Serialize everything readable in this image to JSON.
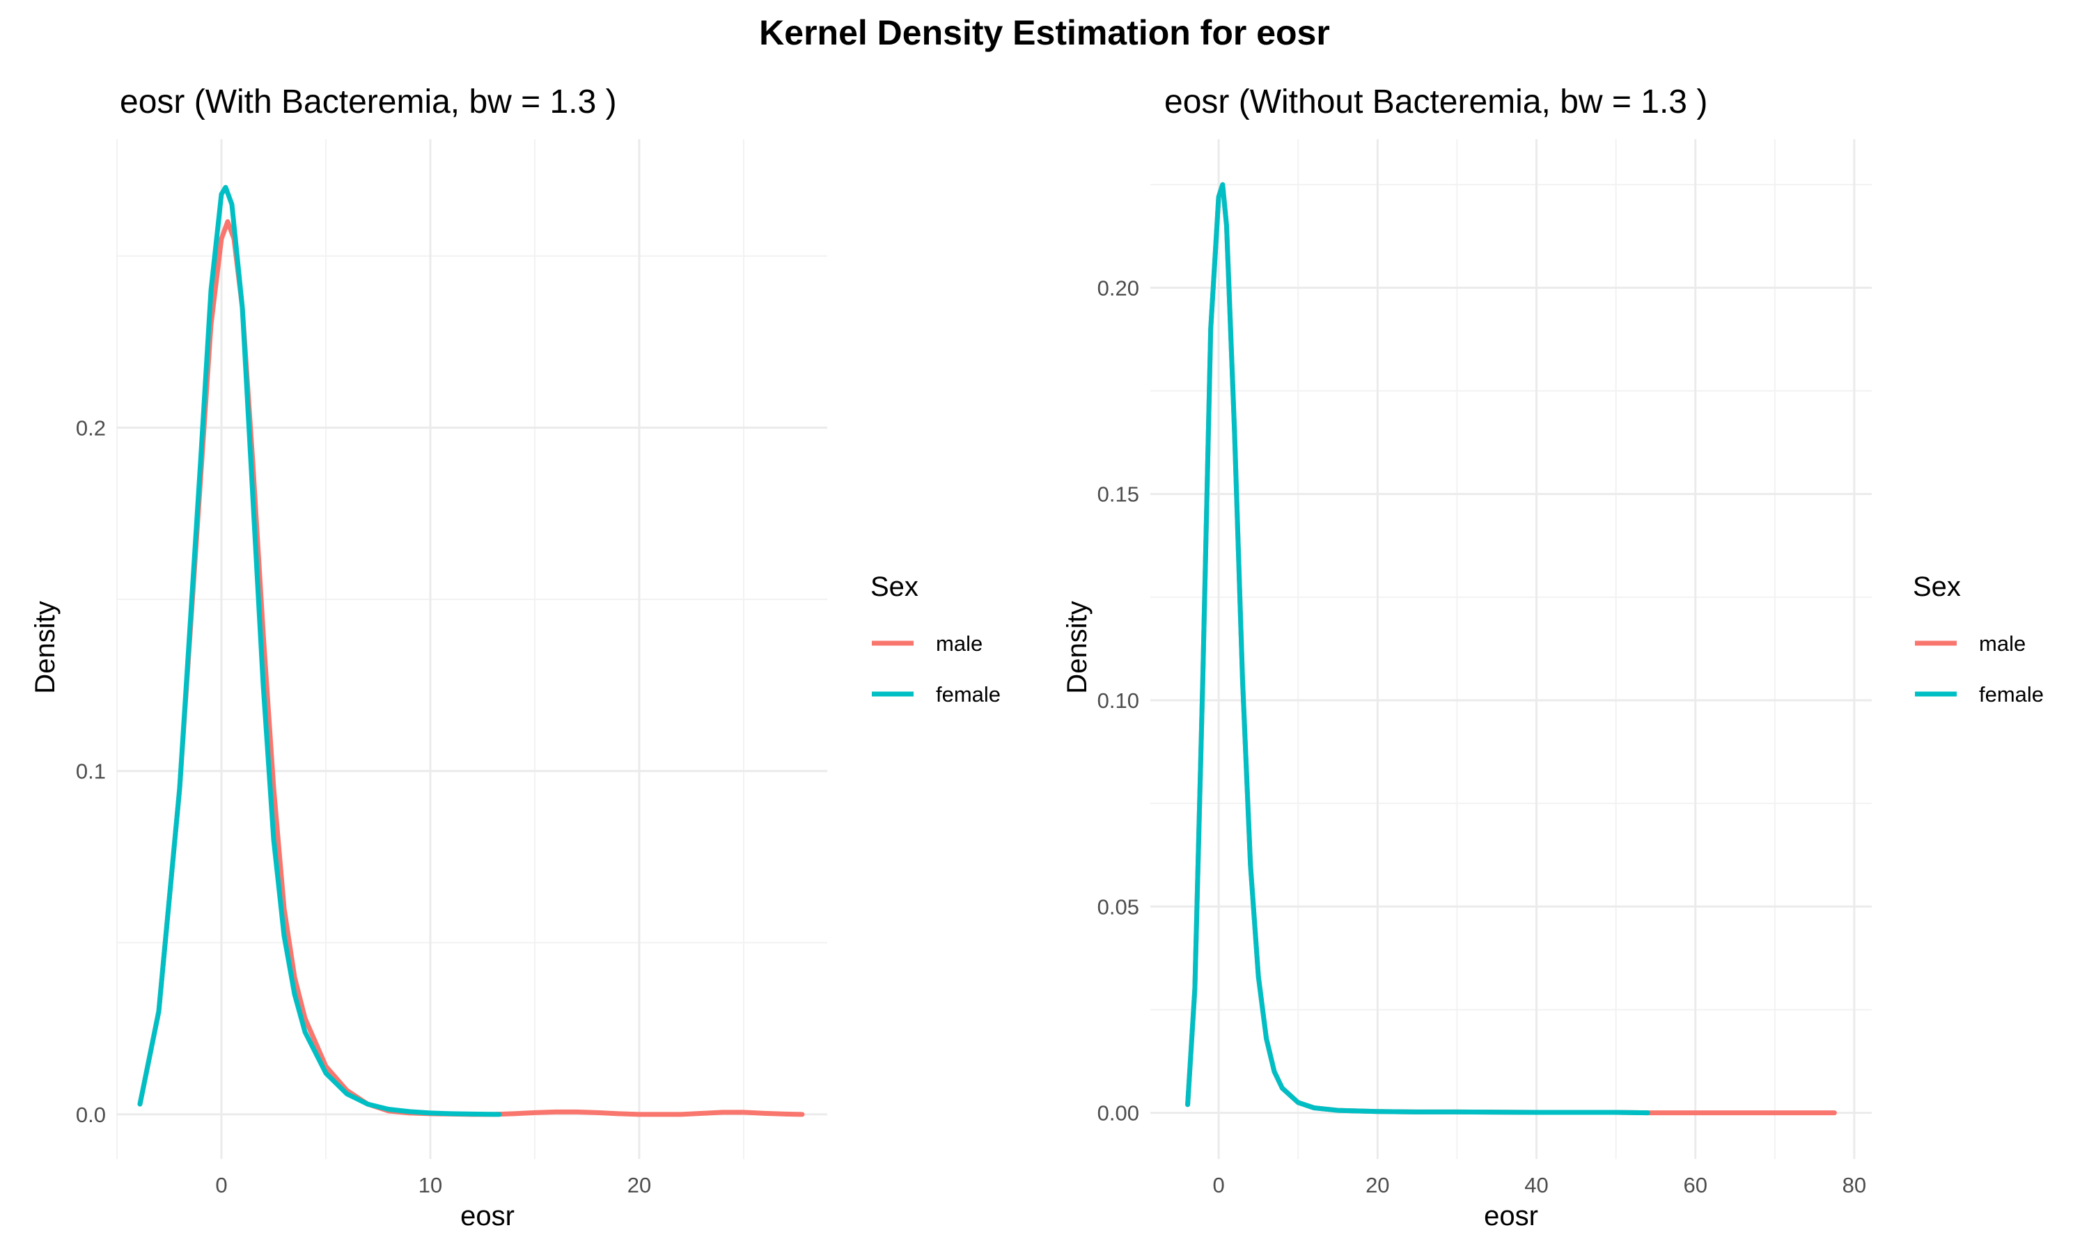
{
  "figure": {
    "title": "Kernel Density Estimation for eosr"
  },
  "chart_data": [
    {
      "type": "line",
      "title": "eosr (With Bacteremia, bw = 1.3 )",
      "xlabel": "eosr",
      "ylabel": "Density",
      "xlim": [
        -5,
        29
      ],
      "ylim": [
        -0.013,
        0.284
      ],
      "x_ticks": [
        0,
        10,
        20
      ],
      "x_tick_labels": [
        "0",
        "10",
        "20"
      ],
      "y_ticks": [
        0.0,
        0.1,
        0.2
      ],
      "y_tick_labels": [
        "0.0",
        "0.1",
        "0.2"
      ],
      "grid": true,
      "legend": {
        "title": "Sex",
        "position": "right",
        "entries": [
          "male",
          "female"
        ]
      },
      "series": [
        {
          "name": "male",
          "color": "#F8766D",
          "x": [
            -3.9,
            -3.0,
            -2.0,
            -1.0,
            -0.5,
            0.0,
            0.3,
            0.6,
            1.0,
            1.5,
            2.0,
            2.5,
            3.0,
            3.5,
            4.0,
            5.0,
            6.0,
            7.0,
            8.0,
            9.0,
            10.0,
            11.0,
            12.0,
            13.0,
            14.0,
            15.0,
            16.0,
            17.0,
            18.0,
            19.0,
            20.0,
            21.0,
            22.0,
            23.0,
            24.0,
            25.0,
            26.0,
            27.0,
            27.8
          ],
          "y": [
            0.003,
            0.03,
            0.095,
            0.185,
            0.23,
            0.255,
            0.26,
            0.255,
            0.235,
            0.19,
            0.14,
            0.095,
            0.06,
            0.04,
            0.028,
            0.014,
            0.007,
            0.003,
            0.001,
            0.0004,
            0.0002,
            0.0001,
            0.0,
            0.0,
            0.0002,
            0.0005,
            0.0007,
            0.0007,
            0.0005,
            0.0002,
            0.0,
            0.0,
            0.0,
            0.0003,
            0.0006,
            0.0006,
            0.0003,
            0.0001,
            0.0
          ]
        },
        {
          "name": "female",
          "color": "#00BFC4",
          "x": [
            -3.9,
            -3.0,
            -2.0,
            -1.0,
            -0.5,
            0.0,
            0.2,
            0.5,
            1.0,
            1.5,
            2.0,
            2.5,
            3.0,
            3.5,
            4.0,
            5.0,
            6.0,
            7.0,
            8.0,
            9.0,
            10.0,
            11.0,
            12.0,
            13.3
          ],
          "y": [
            0.003,
            0.03,
            0.095,
            0.19,
            0.24,
            0.268,
            0.27,
            0.265,
            0.235,
            0.18,
            0.125,
            0.08,
            0.052,
            0.035,
            0.024,
            0.012,
            0.006,
            0.003,
            0.0015,
            0.0008,
            0.0004,
            0.0002,
            0.0001,
            0.0
          ]
        }
      ]
    },
    {
      "type": "line",
      "title": "eosr (Without Bacteremia, bw = 1.3 )",
      "xlabel": "eosr",
      "ylabel": "Density",
      "xlim": [
        -8.6,
        82.2
      ],
      "ylim": [
        -0.0112,
        0.236
      ],
      "x_ticks": [
        0,
        20,
        40,
        60,
        80
      ],
      "x_tick_labels": [
        "0",
        "20",
        "40",
        "60",
        "80"
      ],
      "y_ticks": [
        0.0,
        0.05,
        0.1,
        0.15,
        0.2
      ],
      "y_tick_labels": [
        "0.00",
        "0.05",
        "0.10",
        "0.15",
        "0.20"
      ],
      "grid": true,
      "legend": {
        "title": "Sex",
        "position": "right",
        "entries": [
          "male",
          "female"
        ]
      },
      "series": [
        {
          "name": "male",
          "color": "#F8766D",
          "x": [
            -3.9,
            -3.0,
            -2.0,
            -1.0,
            0.0,
            0.5,
            1.0,
            2.0,
            3.0,
            4.0,
            5.0,
            6.0,
            7.0,
            8.0,
            10.0,
            12.0,
            15.0,
            20.0,
            25.0,
            30.0,
            40.0,
            50.0,
            54.0,
            60.0,
            70.0,
            77.5
          ],
          "y": [
            0.002,
            0.03,
            0.105,
            0.19,
            0.222,
            0.225,
            0.215,
            0.165,
            0.105,
            0.06,
            0.033,
            0.018,
            0.01,
            0.006,
            0.0025,
            0.0012,
            0.0006,
            0.0003,
            0.0002,
            0.0002,
            0.0001,
            0.0001,
            0.0,
            0.0,
            0.0,
            0.0
          ]
        },
        {
          "name": "female",
          "color": "#00BFC4",
          "x": [
            -3.9,
            -3.0,
            -2.0,
            -1.0,
            0.0,
            0.5,
            1.0,
            2.0,
            3.0,
            4.0,
            5.0,
            6.0,
            7.0,
            8.0,
            10.0,
            12.0,
            15.0,
            20.0,
            25.0,
            30.0,
            40.0,
            50.0,
            54.0
          ],
          "y": [
            0.002,
            0.03,
            0.105,
            0.19,
            0.222,
            0.225,
            0.215,
            0.165,
            0.105,
            0.06,
            0.033,
            0.018,
            0.01,
            0.006,
            0.0025,
            0.0012,
            0.0006,
            0.0003,
            0.0002,
            0.0002,
            0.0001,
            0.0001,
            0.0
          ]
        }
      ]
    }
  ]
}
